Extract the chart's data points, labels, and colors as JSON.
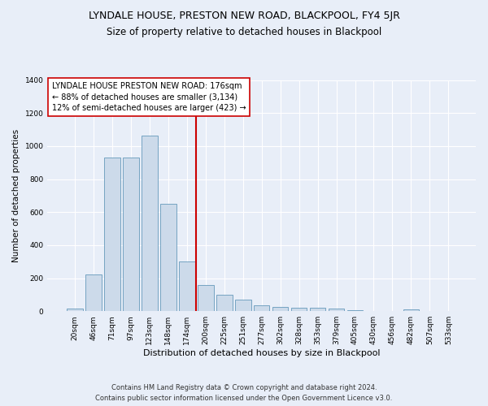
{
  "title": "LYNDALE HOUSE, PRESTON NEW ROAD, BLACKPOOL, FY4 5JR",
  "subtitle": "Size of property relative to detached houses in Blackpool",
  "xlabel": "Distribution of detached houses by size in Blackpool",
  "ylabel": "Number of detached properties",
  "bar_color": "#ccdaea",
  "bar_edge_color": "#6699bb",
  "background_color": "#e8eef8",
  "grid_color": "#ffffff",
  "vline_color": "#cc0000",
  "annotation_text": "LYNDALE HOUSE PRESTON NEW ROAD: 176sqm\n← 88% of detached houses are smaller (3,134)\n12% of semi-detached houses are larger (423) →",
  "annotation_box_color": "#ffffff",
  "annotation_border_color": "#cc0000",
  "categories": [
    "20sqm",
    "46sqm",
    "71sqm",
    "97sqm",
    "123sqm",
    "148sqm",
    "174sqm",
    "200sqm",
    "225sqm",
    "251sqm",
    "277sqm",
    "302sqm",
    "328sqm",
    "353sqm",
    "379sqm",
    "405sqm",
    "430sqm",
    "456sqm",
    "482sqm",
    "507sqm",
    "533sqm"
  ],
  "values": [
    15,
    220,
    930,
    930,
    1065,
    650,
    300,
    160,
    100,
    70,
    35,
    25,
    20,
    20,
    15,
    5,
    0,
    0,
    10,
    0,
    0
  ],
  "ylim": [
    0,
    1400
  ],
  "yticks": [
    0,
    200,
    400,
    600,
    800,
    1000,
    1200,
    1400
  ],
  "footnote1": "Contains HM Land Registry data © Crown copyright and database right 2024.",
  "footnote2": "Contains public sector information licensed under the Open Government Licence v3.0.",
  "title_fontsize": 9,
  "subtitle_fontsize": 8.5,
  "xlabel_fontsize": 8,
  "ylabel_fontsize": 7.5,
  "tick_fontsize": 6.5,
  "footnote_fontsize": 6,
  "annotation_fontsize": 7
}
